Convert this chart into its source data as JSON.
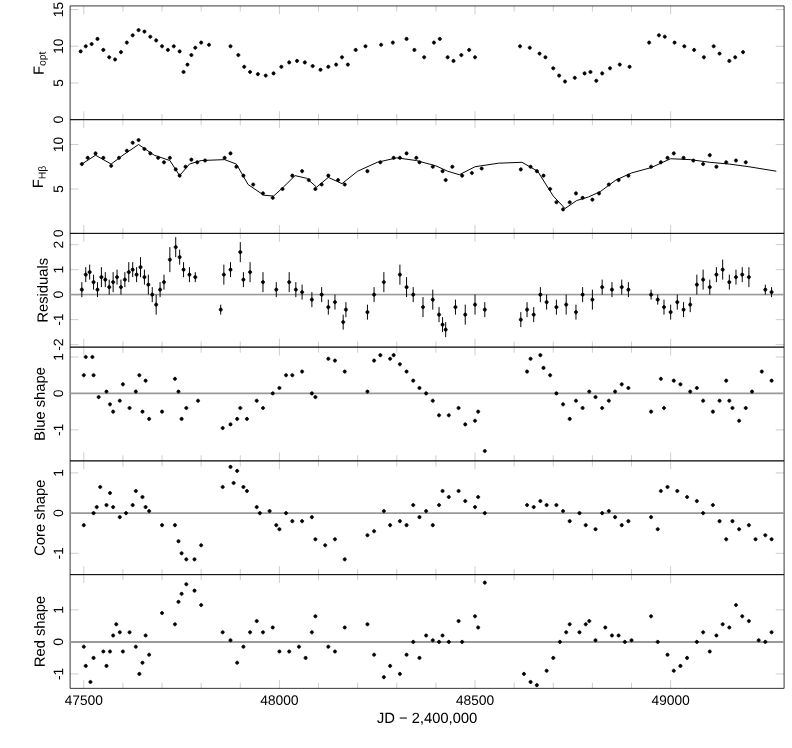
{
  "chart_data": [
    {
      "type": "scatter",
      "ylabel": "F$_{opt}$",
      "marker": "circle",
      "color": "#000000",
      "tick_labels": "y",
      "xlim": [
        47465,
        49290
      ],
      "xticks": [
        47500,
        48000,
        48500,
        49000
      ],
      "ylim": [
        0,
        15.5
      ],
      "yticks": [
        0,
        5,
        10,
        15
      ],
      "x": [
        47492,
        47505,
        47520,
        47535,
        47550,
        47565,
        47580,
        47595,
        47610,
        47625,
        47640,
        47655,
        47670,
        47685,
        47700,
        47715,
        47730,
        47745,
        47755,
        47765,
        47775,
        47785,
        47800,
        47820,
        47875,
        47895,
        47910,
        47925,
        47945,
        47965,
        47985,
        48005,
        48025,
        48045,
        48065,
        48085,
        48105,
        48125,
        48145,
        48160,
        48175,
        48195,
        48220,
        48260,
        48290,
        48325,
        48345,
        48370,
        48395,
        48410,
        48430,
        48445,
        48465,
        48485,
        48500,
        48615,
        48640,
        48665,
        48680,
        48700,
        48715,
        48730,
        48755,
        48780,
        48795,
        48810,
        48825,
        48845,
        48870,
        48895,
        48945,
        48970,
        48985,
        49010,
        49035,
        49060,
        49085,
        49110,
        49125,
        49150,
        49165,
        49185
      ],
      "values": [
        9.3,
        10,
        10.3,
        11,
        9.5,
        8.5,
        8.2,
        9.2,
        10.5,
        11.5,
        12.2,
        12,
        11.3,
        10.8,
        10,
        9.5,
        10,
        9.3,
        6.5,
        7.5,
        8.8,
        9.8,
        10.5,
        10.2,
        10,
        8.8,
        7.2,
        6.5,
        6.2,
        6,
        6.3,
        7.2,
        7.8,
        8,
        7.8,
        7.3,
        6.8,
        7.2,
        7.5,
        8.5,
        7.5,
        9.5,
        10,
        10.2,
        10.5,
        11,
        9.5,
        8.5,
        10.5,
        11,
        8.5,
        8,
        8.8,
        9.5,
        8.5,
        10,
        9.8,
        9,
        8.5,
        7,
        6,
        5.2,
        5.7,
        6.3,
        6.5,
        5.3,
        6.3,
        7,
        7.5,
        7.2,
        10.5,
        11.5,
        11.3,
        10.5,
        10,
        9.5,
        8.5,
        10,
        9,
        8,
        8.5,
        9.2
      ]
    },
    {
      "type": "scatter",
      "ylabel": "F$_{Hβ}$",
      "marker": "circle",
      "tick_labels": "y",
      "xlim": [
        47465,
        49290
      ],
      "xticks": [
        47500,
        48000,
        48500,
        49000
      ],
      "ylim": [
        0,
        12.8
      ],
      "yticks": [
        0,
        5,
        10
      ],
      "series": [
        {
          "type": "scatter",
          "color": "#000000",
          "x": [
            47495,
            47510,
            47530,
            47550,
            47570,
            47590,
            47610,
            47625,
            47640,
            47655,
            47670,
            47690,
            47705,
            47720,
            47735,
            47745,
            47760,
            47775,
            47790,
            47810,
            47860,
            47875,
            47890,
            47908,
            47933,
            47958,
            47983,
            48008,
            48033,
            48058,
            48075,
            48092,
            48108,
            48125,
            48150,
            48167,
            48225,
            48258,
            48292,
            48308,
            48325,
            48350,
            48358,
            48392,
            48417,
            48425,
            48442,
            48467,
            48492,
            48517,
            48617,
            48642,
            48658,
            48675,
            48692,
            48708,
            48725,
            48742,
            48758,
            48775,
            48800,
            48817,
            48842,
            48867,
            48892,
            48950,
            48975,
            48992,
            49008,
            49033,
            49058,
            49083,
            49100,
            49117,
            49142,
            49167,
            49192
          ],
          "values": [
            7.8,
            8.5,
            9,
            8.5,
            7.6,
            8.5,
            9.3,
            10.2,
            10.5,
            9.5,
            9,
            8.5,
            8,
            8.5,
            7.2,
            6.5,
            7.5,
            8.3,
            8,
            8.2,
            8.5,
            9,
            7.5,
            6.5,
            5.5,
            4.5,
            4,
            5,
            6.5,
            7,
            6,
            5,
            5.5,
            6.5,
            6,
            5.5,
            7,
            8,
            8.5,
            8.5,
            9,
            8.5,
            8,
            7.5,
            7,
            6,
            7.5,
            6.5,
            6.8,
            7.3,
            7.2,
            7.5,
            7,
            6.5,
            5,
            3.5,
            2.7,
            3.5,
            4.5,
            4,
            3.8,
            4.5,
            5.5,
            6,
            6.5,
            7.5,
            8,
            8.5,
            9,
            8.5,
            8.2,
            7.8,
            8.8,
            7.5,
            8,
            8.2,
            8
          ]
        },
        {
          "type": "line",
          "marker": "none",
          "color": "#000000",
          "x": [
            47495,
            47530,
            47570,
            47600,
            47640,
            47680,
            47720,
            47745,
            47770,
            47800,
            47860,
            47890,
            47920,
            47960,
            47985,
            48010,
            48040,
            48070,
            48095,
            48125,
            48160,
            48200,
            48250,
            48300,
            48350,
            48400,
            48430,
            48460,
            48500,
            48560,
            48620,
            48660,
            48700,
            48730,
            48760,
            48790,
            48820,
            48860,
            48900,
            48950,
            49000,
            49050,
            49100,
            49150,
            49200,
            49270
          ],
          "values": [
            7.8,
            8.8,
            7.8,
            8.8,
            10,
            8.8,
            8.2,
            6.5,
            7.8,
            8.2,
            8.3,
            7.8,
            5.5,
            4.3,
            4.2,
            5.2,
            6.5,
            6.2,
            5.2,
            6.3,
            5.6,
            7,
            8,
            8.5,
            8.2,
            7.6,
            7,
            6.6,
            7.5,
            7.9,
            8,
            7,
            4.2,
            2.8,
            3.7,
            4.1,
            4.7,
            6,
            6.8,
            7.4,
            8.4,
            8.3,
            8,
            7.8,
            7.5,
            7
          ]
        }
      ]
    },
    {
      "type": "scatter",
      "ylabel": "Residuals",
      "marker": "circle",
      "color": "#000000",
      "tick_labels": "y",
      "xlim": [
        47465,
        49290
      ],
      "xticks": [
        47500,
        48000,
        48500,
        49000
      ],
      "ylim": [
        -2.1,
        2.45
      ],
      "yticks": [
        -2,
        -1,
        0,
        1,
        2
      ],
      "ref_lines": [
        {
          "axis": "y",
          "value": 0,
          "color": "#9a9a9a"
        }
      ],
      "x": [
        47495,
        47505,
        47515,
        47525,
        47535,
        47545,
        47555,
        47565,
        47575,
        47585,
        47595,
        47605,
        47615,
        47625,
        47635,
        47645,
        47655,
        47665,
        47675,
        47685,
        47695,
        47705,
        47720,
        47735,
        47745,
        47755,
        47770,
        47785,
        47850,
        47858,
        47875,
        47900,
        47908,
        47925,
        47958,
        47992,
        48025,
        48042,
        48058,
        48083,
        48108,
        48125,
        48142,
        48163,
        48170,
        48225,
        48242,
        48267,
        48308,
        48325,
        48342,
        48367,
        48392,
        48408,
        48417,
        48425,
        48450,
        48475,
        48500,
        48525,
        48617,
        48633,
        48650,
        48667,
        48683,
        48708,
        48733,
        48758,
        48775,
        48800,
        48825,
        48850,
        48875,
        48892,
        48950,
        48967,
        48983,
        49000,
        49017,
        49033,
        49050,
        49067,
        49083,
        49100,
        49117,
        49133,
        49150,
        49167,
        49183,
        49200,
        49242,
        49258
      ],
      "values": [
        0.2,
        0.8,
        0.9,
        0.5,
        0.2,
        0.7,
        0.6,
        0.3,
        0.5,
        0.7,
        0.3,
        0.6,
        0.9,
        1.0,
        0.8,
        1.1,
        0.7,
        0.4,
        0.0,
        -0.4,
        0.2,
        0.5,
        1.4,
        1.9,
        1.5,
        1.0,
        0.8,
        0.7,
        -0.6,
        0.8,
        1.0,
        1.7,
        0.6,
        0.9,
        0.5,
        0.2,
        0.5,
        0.2,
        0.1,
        -0.2,
        0.0,
        -0.5,
        -0.3,
        -1.1,
        -0.6,
        -0.7,
        0.0,
        0.5,
        0.8,
        0.3,
        0.0,
        -0.5,
        -0.2,
        -0.8,
        -1.2,
        -1.4,
        -0.5,
        -0.8,
        -0.4,
        -0.6,
        -1.0,
        -0.6,
        -0.8,
        0.0,
        -0.3,
        -0.5,
        -0.4,
        -0.7,
        0.0,
        -0.2,
        0.3,
        0.2,
        0.3,
        0.2,
        0.0,
        -0.2,
        -0.5,
        -0.7,
        -0.3,
        -0.6,
        -0.4,
        0.4,
        0.6,
        0.3,
        0.8,
        1.0,
        0.5,
        0.7,
        0.8,
        0.7,
        0.2,
        0.1
      ],
      "errors": [
        0.3,
        0.3,
        0.3,
        0.3,
        0.3,
        0.4,
        0.3,
        0.3,
        0.4,
        0.3,
        0.3,
        0.3,
        0.4,
        0.3,
        0.3,
        0.4,
        0.3,
        0.4,
        0.3,
        0.4,
        0.3,
        0.3,
        0.5,
        0.4,
        0.3,
        0.3,
        0.3,
        0.2,
        0.2,
        0.4,
        0.3,
        0.4,
        0.3,
        0.4,
        0.4,
        0.3,
        0.4,
        0.3,
        0.3,
        0.3,
        0.3,
        0.3,
        0.3,
        0.3,
        0.3,
        0.3,
        0.3,
        0.4,
        0.4,
        0.4,
        0.3,
        0.4,
        0.4,
        0.3,
        0.3,
        0.3,
        0.3,
        0.4,
        0.4,
        0.3,
        0.3,
        0.3,
        0.3,
        0.3,
        0.3,
        0.3,
        0.4,
        0.3,
        0.3,
        0.4,
        0.3,
        0.3,
        0.3,
        0.3,
        0.2,
        0.2,
        0.3,
        0.3,
        0.3,
        0.3,
        0.3,
        0.4,
        0.4,
        0.3,
        0.3,
        0.4,
        0.3,
        0.3,
        0.3,
        0.4,
        0.2,
        0.2
      ]
    },
    {
      "type": "scatter",
      "ylabel": "Blue shape",
      "marker": "circle",
      "color": "#000000",
      "tick_labels": "y",
      "xlim": [
        47465,
        49290
      ],
      "xticks": [
        47500,
        48000,
        48500,
        49000
      ],
      "ylim": [
        -1.85,
        1.27
      ],
      "yticks": [
        -1,
        0,
        1
      ],
      "ref_lines": [
        {
          "axis": "y",
          "value": 0,
          "color": "#9a9a9a"
        }
      ],
      "x": [
        47500,
        47505,
        47522,
        47525,
        47538,
        47558,
        47567,
        47575,
        47592,
        47600,
        47617,
        47633,
        47642,
        47650,
        47658,
        47667,
        47700,
        47733,
        47742,
        47750,
        47762,
        47792,
        47855,
        47875,
        47892,
        47900,
        47917,
        47942,
        47958,
        47983,
        48000,
        48017,
        48033,
        48058,
        48083,
        48092,
        48125,
        48142,
        48167,
        48225,
        48242,
        48258,
        48283,
        48292,
        48308,
        48325,
        48342,
        48358,
        48375,
        48392,
        48408,
        48433,
        48458,
        48475,
        48500,
        48508,
        48525,
        48633,
        48642,
        48667,
        48675,
        48692,
        48708,
        48725,
        48742,
        48758,
        48775,
        48792,
        48808,
        48825,
        48842,
        48858,
        48875,
        48892,
        48950,
        48975,
        48983,
        49008,
        49025,
        49050,
        49067,
        49083,
        49108,
        49125,
        49142,
        49150,
        49158,
        49175,
        49192,
        49208,
        49233,
        49258
      ],
      "values": [
        0.5,
        1.0,
        1.0,
        0.5,
        -0.1,
        0.05,
        -0.3,
        -0.5,
        -0.2,
        0.25,
        -0.4,
        0.05,
        0.5,
        -0.5,
        0.35,
        -0.7,
        -0.5,
        0.4,
        0.05,
        -0.7,
        -0.4,
        -0.2,
        -0.95,
        -0.85,
        -0.7,
        -0.4,
        -0.7,
        -0.2,
        -0.4,
        0,
        0.15,
        0.5,
        0.5,
        0.6,
        0,
        -0.1,
        0.95,
        0.9,
        0.6,
        0.05,
        0.9,
        1.05,
        0.95,
        1.05,
        0.8,
        0.6,
        0.35,
        0.15,
        0,
        -0.2,
        -0.6,
        -0.6,
        -0.4,
        -0.85,
        -0.75,
        -0.5,
        -1.58,
        0.6,
        0.95,
        1.05,
        0.7,
        0.5,
        0,
        -0.3,
        -0.7,
        -0.2,
        -0.4,
        0.05,
        -0.1,
        -0.4,
        -0.2,
        0.05,
        0.25,
        0.15,
        -0.5,
        0.4,
        -0.4,
        0.35,
        0.25,
        0.05,
        0.15,
        -0.2,
        -0.5,
        -0.2,
        0.35,
        -0.2,
        -0.4,
        -0.75,
        -0.4,
        0.05,
        0.6,
        0.35
      ]
    },
    {
      "type": "scatter",
      "ylabel": "Core shape",
      "marker": "circle",
      "color": "#000000",
      "tick_labels": "y",
      "xlim": [
        47465,
        49290
      ],
      "xticks": [
        47500,
        48000,
        48500,
        49000
      ],
      "ylim": [
        -1.53,
        1.3
      ],
      "yticks": [
        -1,
        0,
        1
      ],
      "ref_lines": [
        {
          "axis": "y",
          "value": 0,
          "color": "#9a9a9a"
        }
      ],
      "x": [
        47500,
        47525,
        47533,
        47542,
        47558,
        47567,
        47575,
        47592,
        47608,
        47625,
        47633,
        47650,
        47658,
        47667,
        47700,
        47733,
        47742,
        47750,
        47762,
        47783,
        47800,
        47855,
        47875,
        47883,
        47892,
        47908,
        47917,
        47942,
        47950,
        47975,
        47992,
        48000,
        48017,
        48033,
        48058,
        48083,
        48092,
        48117,
        48142,
        48167,
        48225,
        48242,
        48267,
        48283,
        48308,
        48325,
        48342,
        48358,
        48375,
        48392,
        48408,
        48417,
        48433,
        48458,
        48475,
        48500,
        48508,
        48525,
        48633,
        48650,
        48667,
        48683,
        48708,
        48725,
        48742,
        48767,
        48783,
        48808,
        48825,
        48842,
        48858,
        48875,
        48892,
        48950,
        48967,
        48975,
        48992,
        49017,
        49042,
        49067,
        49083,
        49108,
        49125,
        49142,
        49158,
        49175,
        49200,
        49217,
        49242,
        49258
      ],
      "values": [
        -0.3,
        0,
        0.15,
        0.65,
        0.2,
        0.5,
        0.15,
        -0.1,
        0,
        0.2,
        0.55,
        0.4,
        0.15,
        0.05,
        -0.3,
        -0.3,
        -0.7,
        -1.0,
        -1.15,
        -1.15,
        -0.8,
        0.65,
        1.15,
        0.75,
        1.05,
        0.65,
        0.55,
        0.15,
        0,
        0.05,
        -0.3,
        -0.4,
        0,
        -0.2,
        -0.2,
        -0.1,
        -0.65,
        -0.8,
        -0.65,
        -1.15,
        -0.55,
        -0.45,
        0.05,
        -0.3,
        -0.2,
        -0.3,
        0.2,
        -0.1,
        0.05,
        -0.3,
        0.2,
        0.55,
        0.4,
        0.55,
        0.3,
        0.15,
        0.4,
        0,
        0.2,
        0.15,
        0.3,
        0.2,
        0.2,
        0.05,
        -0.2,
        0,
        -0.3,
        -0.4,
        0,
        0.05,
        -0.1,
        -0.3,
        -0.2,
        -0.1,
        -0.4,
        0.55,
        0.65,
        0.55,
        0.4,
        0.3,
        0,
        0.2,
        -0.2,
        -0.65,
        -0.2,
        -0.4,
        -0.3,
        -0.65,
        -0.55,
        -0.65
      ]
    },
    {
      "type": "scatter",
      "ylabel": "Red shape",
      "xlabel": "JD − 2,400,000",
      "marker": "circle",
      "color": "#000000",
      "xlim": [
        47465,
        49290
      ],
      "xticks": [
        47500,
        48000,
        48500,
        49000
      ],
      "ylim": [
        -1.45,
        2.1
      ],
      "yticks": [
        -1,
        0,
        1
      ],
      "ref_lines": [
        {
          "axis": "y",
          "value": 0,
          "color": "#9a9a9a"
        }
      ],
      "x": [
        47500,
        47505,
        47517,
        47525,
        47550,
        47558,
        47567,
        47575,
        47583,
        47592,
        47600,
        47617,
        47633,
        47642,
        47650,
        47658,
        47667,
        47700,
        47733,
        47742,
        47750,
        47762,
        47783,
        47800,
        47855,
        47875,
        47892,
        47908,
        47925,
        47942,
        47958,
        47983,
        48000,
        48025,
        48050,
        48067,
        48083,
        48092,
        48125,
        48142,
        48167,
        48225,
        48242,
        48267,
        48283,
        48308,
        48325,
        48342,
        48358,
        48375,
        48392,
        48408,
        48417,
        48433,
        48458,
        48467,
        48500,
        48508,
        48525,
        48625,
        48642,
        48658,
        48683,
        48700,
        48717,
        48733,
        48742,
        48767,
        48783,
        48792,
        48808,
        48833,
        48850,
        48867,
        48883,
        48900,
        48950,
        48967,
        48992,
        49008,
        49025,
        49042,
        49067,
        49083,
        49100,
        49117,
        49133,
        49150,
        49167,
        49183,
        49200,
        49225,
        49242,
        49258
      ],
      "values": [
        -0.15,
        -0.75,
        -1.25,
        -0.5,
        -0.3,
        -0.75,
        -0.3,
        0.2,
        0.55,
        0.3,
        -0.3,
        0.3,
        -0.15,
        -1.0,
        -0.65,
        0.2,
        -0.4,
        0.9,
        0.55,
        1.25,
        1.5,
        1.8,
        1.6,
        1.15,
        0.3,
        0.05,
        -0.65,
        -0.15,
        0.3,
        0.65,
        0.3,
        0.45,
        -0.3,
        -0.3,
        -0.15,
        -0.5,
        0.3,
        0.8,
        -0.15,
        -0.3,
        0.45,
        0.55,
        -0.4,
        -1.1,
        -0.75,
        -1.0,
        -0.4,
        0,
        -0.5,
        0.2,
        0.05,
        0,
        0.2,
        0,
        0.65,
        0,
        0.8,
        0.45,
        1.85,
        -1.0,
        -1.25,
        -1.35,
        -0.9,
        -0.5,
        0,
        0.3,
        0.55,
        0.3,
        0.55,
        0.65,
        0.05,
        0.45,
        0.2,
        0.2,
        0,
        0.05,
        0.8,
        0,
        -0.4,
        -0.9,
        -0.75,
        -0.5,
        0,
        0.3,
        -0.3,
        0.2,
        0.55,
        0.45,
        1.15,
        0.8,
        0.65,
        0.05,
        0,
        0.3
      ]
    }
  ]
}
